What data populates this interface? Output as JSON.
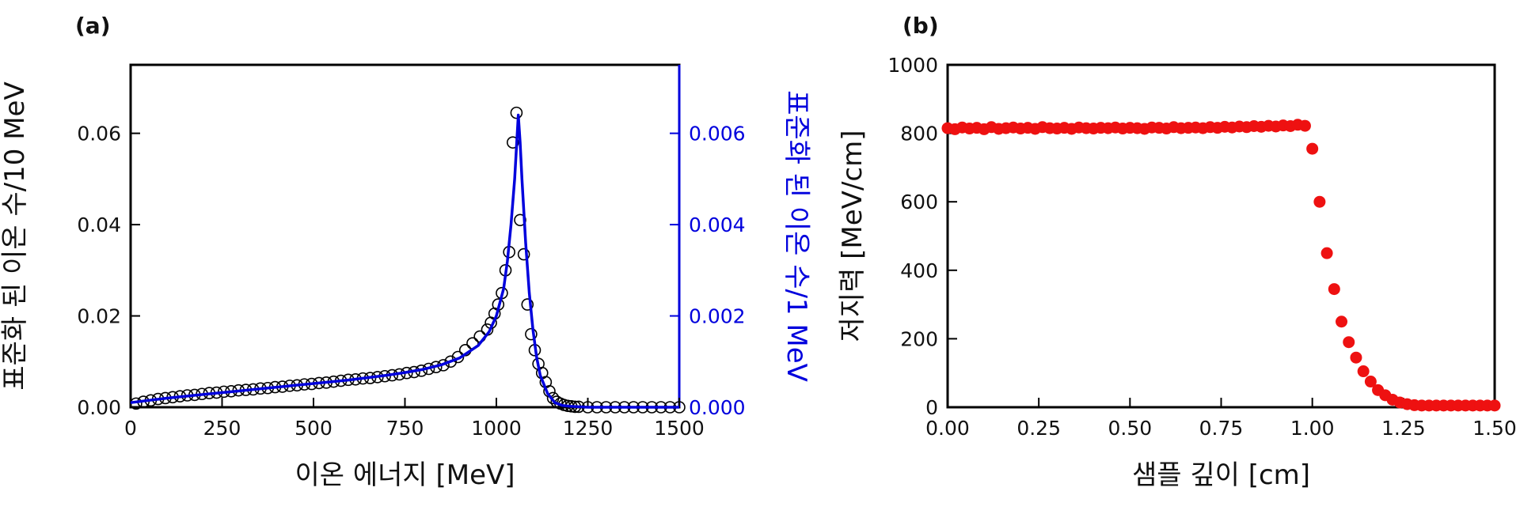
{
  "chart_data": [
    {
      "panel_label": "(a)",
      "type": "scatter",
      "xlabel": "이온 에너지 [MeV]",
      "ylabel": "표준화 된 이온 수/10 MeV",
      "y2label": "표준화 된 이온 수/1 MeV",
      "xlim": [
        0,
        1500
      ],
      "ylim": [
        0,
        0.075
      ],
      "y2lim": [
        0,
        0.0075
      ],
      "xticks": [
        "0",
        "250",
        "500",
        "750",
        "1000",
        "1250",
        "1500"
      ],
      "yticks": [
        "0.00",
        "0.02",
        "0.04",
        "0.06"
      ],
      "y2ticks": [
        "0.000",
        "0.002",
        "0.004",
        "0.006"
      ],
      "colors": {
        "markers": "#000000",
        "line": "#0000dd",
        "right_axis": "#0000dd"
      },
      "series": [
        {
          "axis": "left",
          "style": "open-circle",
          "x": [
            15,
            35,
            55,
            75,
            95,
            115,
            135,
            155,
            175,
            195,
            215,
            235,
            255,
            275,
            295,
            315,
            335,
            355,
            375,
            395,
            415,
            435,
            455,
            475,
            495,
            515,
            535,
            555,
            575,
            595,
            615,
            635,
            655,
            675,
            695,
            715,
            735,
            755,
            775,
            795,
            815,
            835,
            855,
            875,
            895,
            915,
            935,
            955,
            975,
            985,
            995,
            1005,
            1015,
            1025,
            1035,
            1045,
            1055,
            1065,
            1075,
            1085,
            1095,
            1105,
            1115,
            1125,
            1135,
            1145,
            1155,
            1165,
            1175,
            1185,
            1195,
            1205,
            1215,
            1225,
            1250,
            1275,
            1300,
            1325,
            1350,
            1375,
            1400,
            1425,
            1450,
            1475,
            1500
          ],
          "y": [
            0.0008,
            0.0012,
            0.0015,
            0.0018,
            0.002,
            0.0022,
            0.0024,
            0.0026,
            0.0027,
            0.0029,
            0.0031,
            0.0032,
            0.0034,
            0.0035,
            0.0037,
            0.0038,
            0.0039,
            0.0041,
            0.0042,
            0.0044,
            0.0045,
            0.0047,
            0.0048,
            0.005,
            0.0051,
            0.0053,
            0.0054,
            0.0056,
            0.0058,
            0.006,
            0.0061,
            0.0063,
            0.0064,
            0.0066,
            0.0068,
            0.007,
            0.0072,
            0.0075,
            0.0077,
            0.008,
            0.0084,
            0.0088,
            0.0092,
            0.01,
            0.011,
            0.0125,
            0.014,
            0.0155,
            0.017,
            0.0185,
            0.0205,
            0.0225,
            0.025,
            0.03,
            0.034,
            0.058,
            0.0645,
            0.041,
            0.0335,
            0.0225,
            0.016,
            0.0125,
            0.0095,
            0.0075,
            0.0055,
            0.0035,
            0.002,
            0.0012,
            0.0008,
            0.0005,
            0.0003,
            0.0002,
            0.0001,
            0.0001,
            0.0,
            0.0,
            0.0,
            0.0,
            0.0,
            0.0,
            0.0,
            0.0,
            0.0,
            0.0,
            0.0
          ]
        },
        {
          "axis": "right",
          "style": "line",
          "x": [
            0,
            50,
            100,
            150,
            200,
            250,
            300,
            350,
            400,
            450,
            500,
            550,
            600,
            650,
            700,
            750,
            800,
            850,
            900,
            950,
            980,
            1000,
            1020,
            1030,
            1040,
            1050,
            1055,
            1060,
            1065,
            1070,
            1080,
            1090,
            1100,
            1110,
            1120,
            1140,
            1160,
            1180,
            1200,
            1250,
            1300,
            1400,
            1500
          ],
          "y": [
            0.0001,
            0.00015,
            0.0002,
            0.00024,
            0.00028,
            0.00032,
            0.00036,
            0.0004,
            0.00044,
            0.00048,
            0.00052,
            0.00056,
            0.0006,
            0.00065,
            0.0007,
            0.00076,
            0.00083,
            0.00093,
            0.00108,
            0.00135,
            0.00165,
            0.002,
            0.0026,
            0.0032,
            0.004,
            0.005,
            0.0057,
            0.0064,
            0.0058,
            0.005,
            0.0036,
            0.0025,
            0.0017,
            0.0011,
            0.0007,
            0.0003,
            0.0001,
            4e-05,
            2e-05,
            0.0,
            0.0,
            0.0,
            0.0
          ]
        }
      ]
    },
    {
      "panel_label": "(b)",
      "type": "scatter",
      "xlabel": "샘플 깊이 [cm]",
      "ylabel": "저지력 [MeV/cm]",
      "xlim": [
        0,
        1.5
      ],
      "ylim": [
        0,
        1000
      ],
      "xticks": [
        "0.00",
        "0.25",
        "0.50",
        "0.75",
        "1.00",
        "1.25",
        "1.50"
      ],
      "yticks": [
        "0",
        "200",
        "400",
        "600",
        "800",
        "1000"
      ],
      "colors": {
        "markers": "#ee1111"
      },
      "series": [
        {
          "style": "filled-circle",
          "x": [
            0.0,
            0.02,
            0.04,
            0.06,
            0.08,
            0.1,
            0.12,
            0.14,
            0.16,
            0.18,
            0.2,
            0.22,
            0.24,
            0.26,
            0.28,
            0.3,
            0.32,
            0.34,
            0.36,
            0.38,
            0.4,
            0.42,
            0.44,
            0.46,
            0.48,
            0.5,
            0.52,
            0.54,
            0.56,
            0.58,
            0.6,
            0.62,
            0.64,
            0.66,
            0.68,
            0.7,
            0.72,
            0.74,
            0.76,
            0.78,
            0.8,
            0.82,
            0.84,
            0.86,
            0.88,
            0.9,
            0.92,
            0.94,
            0.96,
            0.98,
            1.0,
            1.02,
            1.04,
            1.06,
            1.08,
            1.1,
            1.12,
            1.14,
            1.16,
            1.18,
            1.2,
            1.22,
            1.24,
            1.26,
            1.28,
            1.3,
            1.32,
            1.34,
            1.36,
            1.38,
            1.4,
            1.42,
            1.44,
            1.46,
            1.48,
            1.5
          ],
          "y": [
            815,
            812,
            817,
            814,
            816,
            812,
            818,
            813,
            815,
            817,
            814,
            816,
            813,
            818,
            815,
            814,
            816,
            813,
            817,
            815,
            814,
            816,
            815,
            817,
            814,
            816,
            815,
            813,
            817,
            816,
            814,
            818,
            815,
            816,
            817,
            815,
            818,
            816,
            819,
            817,
            820,
            818,
            821,
            819,
            822,
            820,
            823,
            821,
            825,
            822,
            755,
            600,
            450,
            345,
            250,
            190,
            145,
            105,
            75,
            50,
            35,
            22,
            14,
            9,
            6,
            5,
            5,
            5,
            5,
            5,
            5,
            5,
            5,
            5,
            5,
            5
          ]
        }
      ]
    }
  ]
}
